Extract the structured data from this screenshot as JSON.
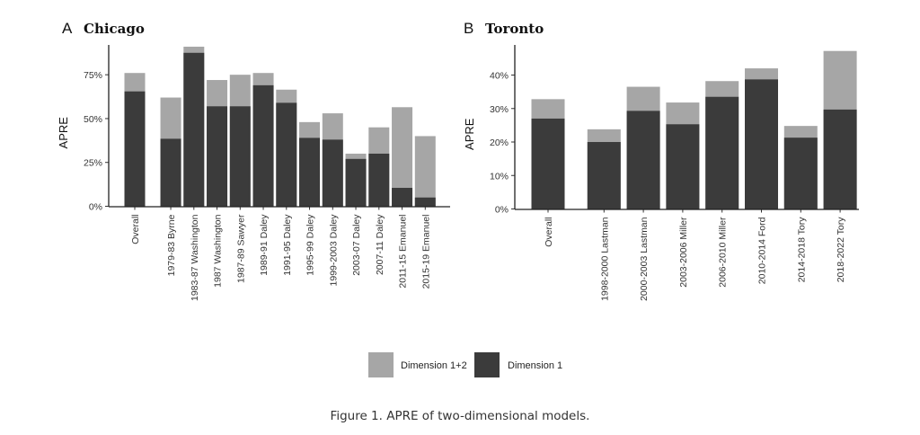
{
  "caption": "Figure 1. APRE of two-dimensional models.",
  "legend": {
    "items": [
      {
        "label": "Dimension 1+2",
        "color": "#a6a6a6"
      },
      {
        "label": "Dimension 1",
        "color": "#3b3b3b"
      }
    ]
  },
  "chart_data": [
    {
      "panel_letter": "A",
      "title": "Chicago",
      "type": "bar",
      "stacked_overlay": true,
      "ylabel": "APRE",
      "ylim": [
        0,
        0.92
      ],
      "yticks": [
        0,
        0.25,
        0.5,
        0.75
      ],
      "ytick_labels": [
        "0%",
        "25%",
        "50%",
        "75%"
      ],
      "categories": [
        "Overall",
        "1979-83 Byrne",
        "1983-87 Washington",
        "1987 Washington",
        "1987-89 Sawyer",
        "1989-91 Daley",
        "1991-95 Daley",
        "1995-99 Daley",
        "1999-2003 Daley",
        "2003-07 Daley",
        "2007-11 Daley",
        "2011-15 Emanuel",
        "2015-19 Emanuel"
      ],
      "series": [
        {
          "name": "Dimension 1+2",
          "color": "#a6a6a6",
          "values": [
            0.76,
            0.62,
            0.91,
            0.72,
            0.75,
            0.76,
            0.665,
            0.48,
            0.53,
            0.3,
            0.45,
            0.565,
            0.4
          ]
        },
        {
          "name": "Dimension 1",
          "color": "#3b3b3b",
          "values": [
            0.655,
            0.385,
            0.875,
            0.57,
            0.57,
            0.69,
            0.59,
            0.39,
            0.38,
            0.27,
            0.3,
            0.105,
            0.05
          ]
        }
      ]
    },
    {
      "panel_letter": "B",
      "title": "Toronto",
      "type": "bar",
      "stacked_overlay": true,
      "ylabel": "APRE",
      "ylim": [
        0,
        0.49
      ],
      "yticks": [
        0,
        0.1,
        0.2,
        0.3,
        0.4
      ],
      "ytick_labels": [
        "0%",
        "10%",
        "20%",
        "30%",
        "40%"
      ],
      "categories": [
        "Overall",
        "1998-2000 Lastman",
        "2000-2003 Lastman",
        "2003-2006 Miller",
        "2006-2010 Miller",
        "2010-2014 Ford",
        "2014-2018 Tory",
        "2018-2022 Tory"
      ],
      "series": [
        {
          "name": "Dimension 1+2",
          "color": "#a6a6a6",
          "values": [
            0.328,
            0.238,
            0.365,
            0.318,
            0.382,
            0.42,
            0.248,
            0.472
          ]
        },
        {
          "name": "Dimension 1",
          "color": "#3b3b3b",
          "values": [
            0.27,
            0.2,
            0.293,
            0.253,
            0.335,
            0.387,
            0.213,
            0.297
          ]
        }
      ]
    }
  ]
}
